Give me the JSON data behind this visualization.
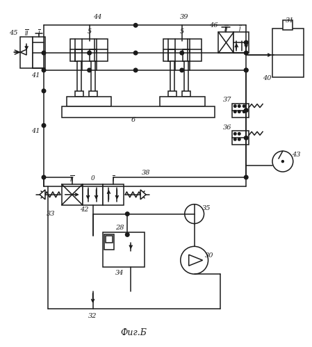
{
  "figsize": [
    4.49,
    4.99
  ],
  "dpi": 100,
  "bg": "#ffffff",
  "lc": "#1a1a1a",
  "lw": 1.1
}
